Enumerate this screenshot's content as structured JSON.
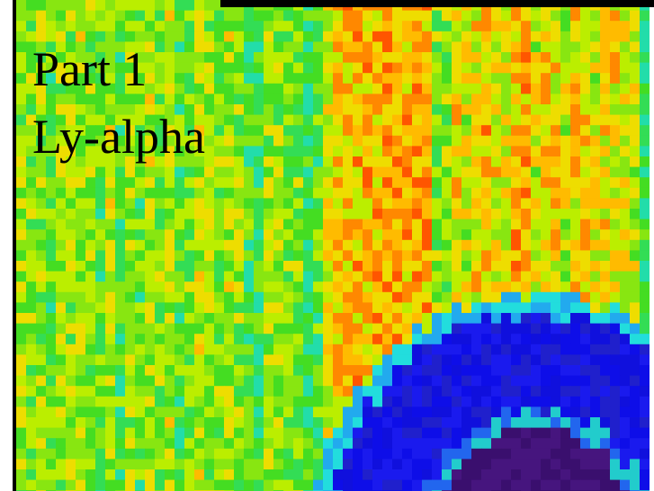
{
  "caption": {
    "line1": "Part 1",
    "line2": "Ly-alpha"
  }
}
